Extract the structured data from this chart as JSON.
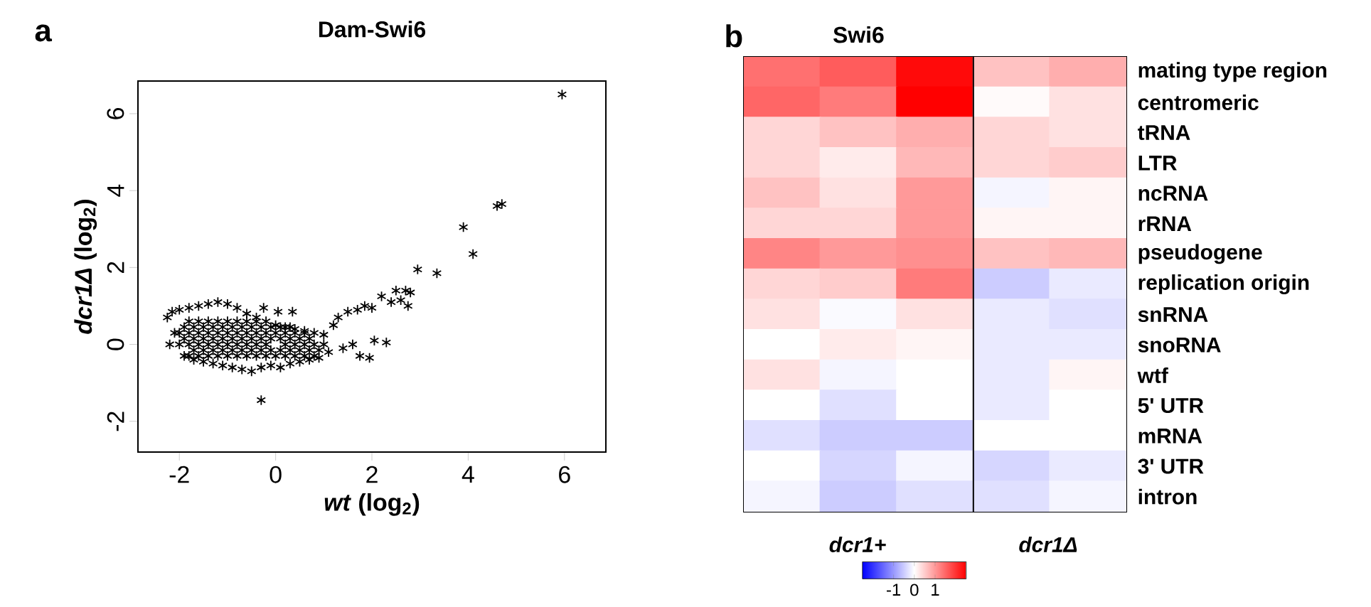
{
  "chart_data": [
    {
      "type": "scatter",
      "title": "Dam-Swi6",
      "xlabel": "*wt* (log$_{2}$)",
      "ylabel": "*dcr1Δ* (log$_{2}$)",
      "marker": "cross",
      "xlim": [
        -2.86,
        6.86
      ],
      "ylim": [
        -2.8,
        6.85
      ],
      "xticks": [
        -2,
        0,
        2,
        4,
        6
      ],
      "yticks": [
        -2,
        0,
        2,
        4,
        6
      ],
      "annotations": [
        "a"
      ],
      "series": [
        {
          "color": "#000000",
          "x": [
            -2.2,
            -2.25,
            -2.15,
            -2.1,
            -2.0,
            -1.9,
            -1.8,
            -1.7,
            -1.6,
            -1.5,
            -1.4,
            -1.3,
            -1.2,
            -1.1,
            -1.0,
            -0.9,
            -0.8,
            -0.7,
            -0.6,
            -0.5,
            -0.4,
            -0.3,
            -0.25,
            -0.2,
            -0.1,
            0.0,
            0.05,
            0.1,
            0.2,
            0.3,
            0.35,
            0.4,
            0.5,
            0.6,
            0.7,
            0.8,
            0.9,
            1.0,
            1.1,
            1.2,
            1.3,
            1.4,
            1.5,
            1.6,
            1.7,
            1.75,
            1.85,
            1.95,
            2.0,
            2.05,
            2.2,
            2.3,
            2.4,
            2.5,
            2.6,
            2.7,
            2.8,
            2.75,
            2.95,
            3.35,
            3.9,
            4.1,
            4.6,
            4.7,
            5.95,
            -0.3
          ],
          "values": [
            0.0,
            0.7,
            0.85,
            0.3,
            0.9,
            -0.3,
            0.95,
            -0.4,
            1.0,
            -0.45,
            1.05,
            -0.5,
            1.1,
            -0.55,
            1.05,
            -0.6,
            0.95,
            -0.65,
            0.8,
            -0.7,
            0.7,
            -0.6,
            0.95,
            0.6,
            -0.55,
            0.5,
            0.85,
            -0.6,
            0.45,
            -0.5,
            0.85,
            0.4,
            -0.45,
            0.35,
            -0.4,
            0.3,
            -0.35,
            0.25,
            -0.2,
            0.5,
            0.7,
            -0.1,
            0.85,
            0.0,
            0.9,
            -0.3,
            1.0,
            -0.35,
            0.95,
            0.1,
            1.25,
            0.05,
            1.1,
            1.4,
            1.15,
            1.4,
            1.35,
            1.0,
            1.95,
            1.85,
            3.05,
            2.35,
            3.6,
            3.65,
            6.5,
            -1.45
          ]
        },
        {
          "color": "#000000",
          "x": [
            -1.8,
            -1.6,
            -1.4,
            -1.2,
            -1.0,
            -0.8,
            -0.6,
            -0.4,
            -0.2,
            0.0,
            0.2,
            0.4,
            0.6,
            0.8
          ],
          "values": [
            -0.3,
            -0.3,
            -0.3,
            -0.3,
            -0.3,
            -0.3,
            -0.3,
            -0.3,
            -0.3,
            -0.3,
            -0.3,
            -0.3,
            -0.3,
            -0.3
          ]
        },
        {
          "color": "#000000",
          "x": [
            -2.0,
            -1.8,
            -1.6,
            -1.4,
            -1.2,
            -1.0,
            -0.8,
            -0.6,
            -0.4,
            -0.2,
            0.2,
            0.4,
            0.6,
            0.8,
            1.0
          ],
          "values": [
            0.0,
            0.0,
            0.0,
            0.0,
            0.0,
            0.0,
            0.0,
            0.0,
            0.0,
            0.0,
            0.0,
            0.0,
            0.0,
            0.0,
            0.0
          ]
        },
        {
          "color": "#000000",
          "x": [
            -2.0,
            -1.8,
            -1.6,
            -1.4,
            -1.2,
            -1.0,
            -0.8,
            -0.6,
            -0.4,
            -0.2,
            0.0,
            0.2,
            0.4,
            0.6
          ],
          "values": [
            0.3,
            0.3,
            0.3,
            0.3,
            0.3,
            0.3,
            0.3,
            0.3,
            0.3,
            0.3,
            0.3,
            0.3,
            0.3,
            0.3
          ]
        },
        {
          "color": "#000000",
          "x": [
            -1.8,
            -1.6,
            -1.4,
            -1.2,
            -1.0,
            -0.8,
            -0.6,
            -0.4
          ],
          "values": [
            0.6,
            0.6,
            0.6,
            0.6,
            0.6,
            0.6,
            0.6,
            0.6
          ]
        },
        {
          "color": "#000000",
          "x": [
            -1.9,
            -1.7,
            -1.5,
            -1.3,
            -1.1,
            -0.9,
            -0.7,
            -0.5,
            -0.3,
            -0.1,
            0.1,
            0.3,
            0.5,
            0.7
          ],
          "values": [
            0.15,
            0.15,
            0.15,
            0.15,
            0.15,
            0.15,
            0.15,
            0.15,
            0.15,
            0.15,
            0.15,
            0.15,
            0.15,
            0.15
          ]
        },
        {
          "color": "#000000",
          "x": [
            -1.9,
            -1.7,
            -1.5,
            -1.3,
            -1.1,
            -0.9,
            -0.7,
            -0.5,
            -0.3,
            -0.1,
            0.1,
            0.3
          ],
          "values": [
            0.45,
            0.45,
            0.45,
            0.45,
            0.45,
            0.45,
            0.45,
            0.45,
            0.45,
            0.45,
            0.45,
            0.45
          ]
        },
        {
          "color": "#000000",
          "x": [
            -1.7,
            -1.5,
            -1.3,
            -1.1,
            -0.9,
            -0.7,
            -0.5,
            -0.3,
            -0.1,
            0.1,
            0.3,
            0.5,
            0.7,
            0.9
          ],
          "values": [
            -0.15,
            -0.15,
            -0.15,
            -0.15,
            -0.15,
            -0.15,
            -0.15,
            -0.15,
            -0.15,
            -0.15,
            -0.15,
            -0.15,
            -0.15,
            -0.15
          ]
        }
      ]
    },
    {
      "type": "heatmap",
      "title": "Swi6",
      "tick_labels": "y",
      "categories": [
        null,
        null,
        null,
        null,
        null
      ],
      "y_categories": [
        "mating type region",
        "centromeric",
        "tRNA",
        "LTR",
        "ncRNA",
        "rRNA",
        "pseudogene",
        "replication origin",
        "snRNA",
        "snoRNA",
        "wtf",
        "5' UTR",
        "mRNA",
        "3' UTR",
        "intron"
      ],
      "cells": [
        [
          1.4,
          1.6,
          2.4,
          0.6,
          0.8
        ],
        [
          1.5,
          1.3,
          2.5,
          0.05,
          0.3
        ],
        [
          0.4,
          0.6,
          0.8,
          0.4,
          0.3
        ],
        [
          0.4,
          0.2,
          0.7,
          0.4,
          0.5
        ],
        [
          0.6,
          0.3,
          1.0,
          -0.1,
          0.1
        ],
        [
          0.4,
          0.4,
          1.0,
          0.1,
          0.1
        ],
        [
          1.2,
          1.0,
          1.1,
          0.6,
          0.7
        ],
        [
          0.4,
          0.5,
          1.3,
          -0.5,
          -0.2
        ],
        [
          0.3,
          -0.05,
          0.3,
          -0.2,
          -0.3
        ],
        [
          0.0,
          0.2,
          0.1,
          -0.2,
          -0.2
        ],
        [
          0.3,
          -0.1,
          0.0,
          -0.2,
          0.1
        ],
        [
          0.0,
          -0.3,
          0.0,
          -0.2,
          0.0
        ],
        [
          -0.3,
          -0.5,
          -0.5,
          0.0,
          0.0
        ],
        [
          0.0,
          -0.4,
          -0.1,
          -0.4,
          -0.2
        ],
        [
          -0.1,
          -0.5,
          -0.3,
          -0.3,
          -0.1
        ]
      ],
      "clim": [
        -2.5,
        2.5
      ],
      "cticks": [
        -1,
        0,
        1
      ],
      "annotations": [
        "b",
        "dcr1+",
        "dcr1Δ"
      ]
    }
  ]
}
